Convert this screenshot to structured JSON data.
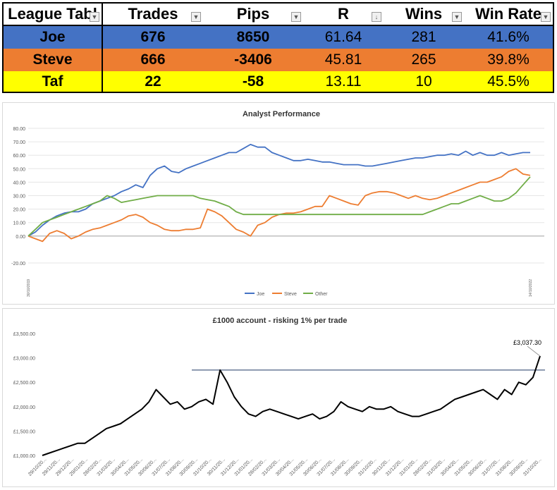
{
  "league_table": {
    "headers": [
      "League Tabl",
      "Trades",
      "Pips",
      "R",
      "Wins",
      "Win Rate"
    ],
    "rows": [
      {
        "name": "Joe",
        "trades": "676",
        "pips": "8650",
        "r": "61.64",
        "wins": "281",
        "win_rate": "41.6%",
        "color": "#4472c4"
      },
      {
        "name": "Steve",
        "trades": "666",
        "pips": "-3406",
        "r": "45.81",
        "wins": "265",
        "win_rate": "39.8%",
        "color": "#ed7d31"
      },
      {
        "name": "Taf",
        "trades": "22",
        "pips": "-58",
        "r": "13.11",
        "wins": "10",
        "win_rate": "45.5%",
        "color": "#ffff00"
      }
    ]
  },
  "chart_data": [
    {
      "type": "line",
      "title": "Analyst Performance",
      "xlabel": "",
      "ylabel": "",
      "ylim": [
        -20,
        80
      ],
      "yticks": [
        "-20.00",
        "0.00",
        "10.00",
        "20.00",
        "30.00",
        "40.00",
        "50.00",
        "60.00",
        "70.00",
        "80.00"
      ],
      "grid": true,
      "legend": "bottom",
      "x_start_label": "30/10/2019",
      "x_end_label": "14/10/2022",
      "series": [
        {
          "name": "Joe",
          "color": "#4472c4",
          "values": [
            0,
            3,
            8,
            12,
            15,
            17,
            18,
            18,
            20,
            24,
            26,
            28,
            30,
            33,
            35,
            38,
            36,
            45,
            50,
            52,
            48,
            47,
            50,
            52,
            54,
            56,
            58,
            60,
            62,
            62,
            65,
            68,
            66,
            66,
            62,
            60,
            58,
            56,
            56,
            57,
            56,
            55,
            55,
            54,
            53,
            53,
            53,
            52,
            52,
            53,
            54,
            55,
            56,
            57,
            58,
            58,
            59,
            60,
            60,
            61,
            60,
            63,
            60,
            62,
            60,
            60,
            62,
            60,
            61,
            62,
            62
          ]
        },
        {
          "name": "Steve",
          "color": "#ed7d31",
          "values": [
            0,
            -2,
            -4,
            2,
            4,
            2,
            -2,
            0,
            3,
            5,
            6,
            8,
            10,
            12,
            15,
            16,
            14,
            10,
            8,
            5,
            4,
            4,
            5,
            5,
            6,
            20,
            18,
            15,
            10,
            5,
            3,
            0,
            8,
            10,
            14,
            16,
            17,
            17,
            18,
            20,
            22,
            22,
            30,
            28,
            26,
            24,
            23,
            30,
            32,
            33,
            33,
            32,
            30,
            28,
            30,
            28,
            27,
            28,
            30,
            32,
            34,
            36,
            38,
            40,
            40,
            42,
            44,
            48,
            50,
            46,
            45
          ]
        },
        {
          "name": "Other",
          "color": "#70ad47",
          "values": [
            0,
            5,
            10,
            12,
            14,
            16,
            18,
            20,
            22,
            24,
            26,
            30,
            28,
            25,
            26,
            27,
            28,
            29,
            30,
            30,
            30,
            30,
            30,
            30,
            28,
            27,
            26,
            24,
            22,
            18,
            16,
            16,
            16,
            16,
            16,
            16,
            16,
            16,
            16,
            16,
            16,
            16,
            16,
            16,
            16,
            16,
            16,
            16,
            16,
            16,
            16,
            16,
            16,
            16,
            16,
            16,
            18,
            20,
            22,
            24,
            24,
            26,
            28,
            30,
            28,
            26,
            26,
            28,
            32,
            38,
            44
          ]
        }
      ]
    },
    {
      "type": "line",
      "title": "£1000 account - risking 1% per trade",
      "xlabel": "",
      "ylabel": "",
      "ylim": [
        1000,
        3500
      ],
      "yticks": [
        "£1,000.00",
        "£1,500.00",
        "£2,000.00",
        "£2,500.00",
        "£3,000.00",
        "£3,500.00"
      ],
      "grid": false,
      "annotation": "£3,037.30",
      "x_labels": [
        "29/10/20...",
        "29/11/20...",
        "29/12/20...",
        "29/01/20...",
        "28/02/20...",
        "31/03/20...",
        "30/04/20...",
        "31/05/20...",
        "30/06/20...",
        "31/07/20...",
        "31/08/20...",
        "30/09/20...",
        "31/10/20...",
        "30/11/20...",
        "31/12/20...",
        "31/01/20...",
        "28/02/20...",
        "31/03/20...",
        "30/04/20...",
        "31/05/20...",
        "30/06/20...",
        "31/07/20...",
        "31/08/20...",
        "30/09/20...",
        "31/10/20...",
        "30/11/20...",
        "31/12/20...",
        "31/01/20...",
        "28/02/20...",
        "31/03/20...",
        "30/04/20...",
        "31/05/20...",
        "30/06/20...",
        "31/07/20...",
        "31/08/20...",
        "30/09/20...",
        "31/10/20..."
      ],
      "reference_line": 2750,
      "series": [
        {
          "name": "",
          "color": "#000000",
          "values": [
            1000,
            1050,
            1100,
            1150,
            1200,
            1250,
            1250,
            1350,
            1450,
            1550,
            1600,
            1650,
            1750,
            1850,
            1950,
            2100,
            2350,
            2200,
            2050,
            2100,
            1950,
            2000,
            2100,
            2150,
            2050,
            2750,
            2500,
            2200,
            2000,
            1850,
            1800,
            1900,
            1950,
            1900,
            1850,
            1800,
            1750,
            1800,
            1850,
            1750,
            1800,
            1900,
            2100,
            2000,
            1950,
            1900,
            2000,
            1950,
            1950,
            2000,
            1900,
            1850,
            1800,
            1800,
            1850,
            1900,
            1950,
            2050,
            2150,
            2200,
            2250,
            2300,
            2350,
            2250,
            2150,
            2350,
            2250,
            2500,
            2450,
            2600,
            3037
          ]
        }
      ]
    }
  ]
}
